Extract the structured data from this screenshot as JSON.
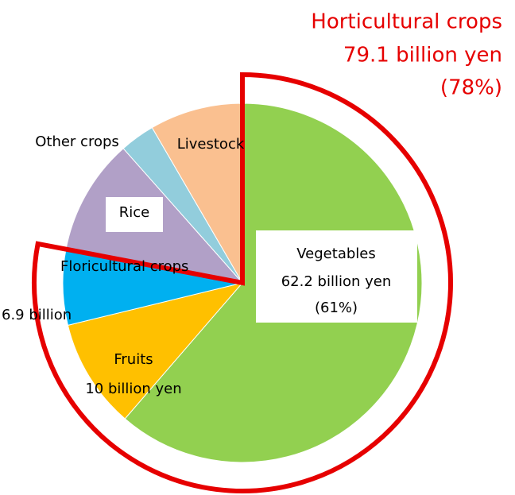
{
  "chart_data": {
    "type": "pie",
    "categories": [
      "Vegetables",
      "Fruits",
      "Floricultural crops",
      "Rice",
      "Other crops",
      "Livestock"
    ],
    "values": [
      62.2,
      10,
      6.9,
      10.6,
      3.2,
      8.5
    ],
    "value_labels": [
      "62.2 billion yen",
      "10 billion yen",
      "6.9 billion",
      null,
      null,
      null
    ],
    "percent_labels": [
      "(61%)",
      null,
      null,
      null,
      null,
      null
    ],
    "colors": [
      "#92d050",
      "#ffc000",
      "#00b0f0",
      "#b1a0c7",
      "#92cddc",
      "#fac090"
    ],
    "callout": {
      "title": "Horticultural crops",
      "value": 79.1,
      "value_label": "79.1 billion yen",
      "percent": 78,
      "percent_label": "(78%)",
      "color": "#e60000"
    }
  }
}
